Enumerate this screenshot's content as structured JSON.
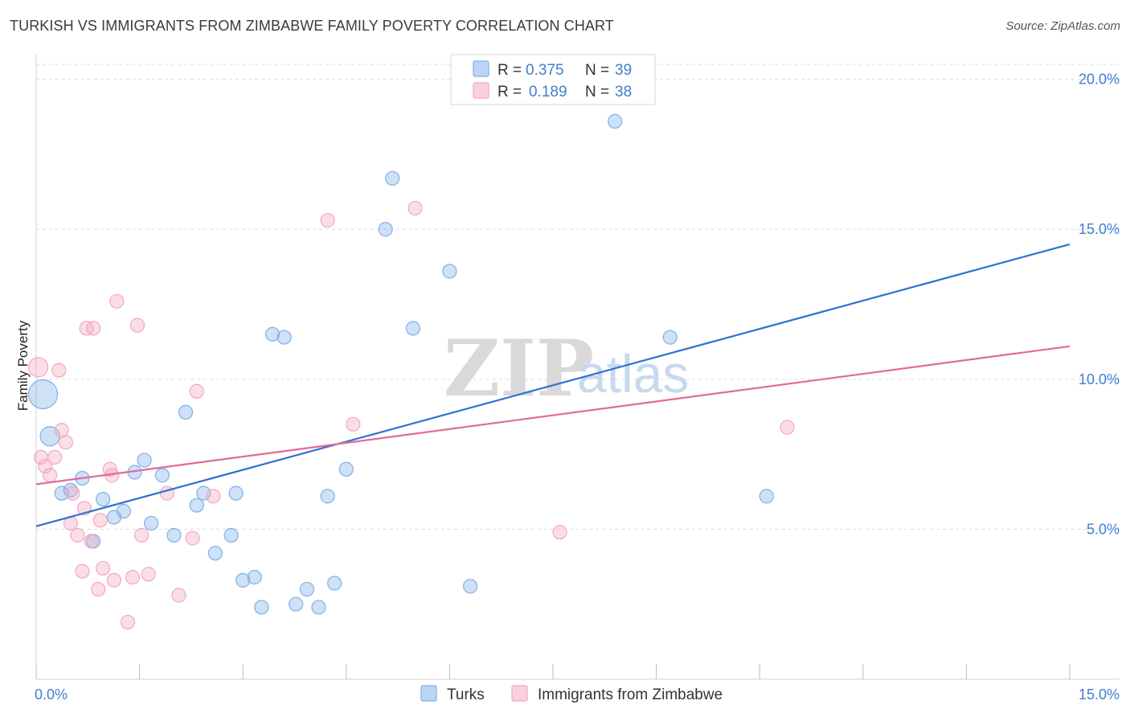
{
  "header": {
    "title": "TURKISH VS IMMIGRANTS FROM ZIMBABWE FAMILY POVERTY CORRELATION CHART",
    "source": "Source: ZipAtlas.com"
  },
  "watermark": {
    "zip": "ZIP",
    "atlas": "atlas"
  },
  "colors": {
    "turks": "#7fb0e8",
    "turks_line": "#2f72cf",
    "zimbabwe": "#f3a7c0",
    "zimbabwe_line": "#e06a97",
    "axis_label": "#3f7fd0"
  },
  "chart_data": {
    "type": "scatter",
    "title": "TURKISH VS IMMIGRANTS FROM ZIMBABWE FAMILY POVERTY CORRELATION CHART",
    "xlabel": "",
    "ylabel": "Family Poverty",
    "xlim": [
      0,
      15
    ],
    "ylim": [
      0,
      20.5
    ],
    "x_tick_labels": [
      "0.0%",
      "15.0%"
    ],
    "y_ticks": [
      5,
      10,
      15,
      20
    ],
    "y_tick_labels": [
      "5.0%",
      "10.0%",
      "15.0%",
      "20.0%"
    ],
    "grid": true,
    "legend": {
      "placement": "top-center",
      "entries": [
        {
          "r_label": "R =",
          "r_value": "0.375",
          "n_label": "N =",
          "n_value": "39"
        },
        {
          "r_label": "R =",
          "r_value": "0.189",
          "n_label": "N =",
          "n_value": "38"
        }
      ]
    },
    "series": [
      {
        "name": "Turks",
        "trend": {
          "x": [
            0,
            15
          ],
          "y": [
            5.1,
            14.5
          ]
        },
        "points": [
          {
            "x": 0.1,
            "y": 9.5,
            "size": "large"
          },
          {
            "x": 0.2,
            "y": 8.1,
            "size": "medium"
          },
          {
            "x": 0.37,
            "y": 6.2
          },
          {
            "x": 0.5,
            "y": 6.3
          },
          {
            "x": 0.67,
            "y": 6.7
          },
          {
            "x": 0.83,
            "y": 4.6
          },
          {
            "x": 0.97,
            "y": 6.0
          },
          {
            "x": 1.13,
            "y": 5.4
          },
          {
            "x": 1.27,
            "y": 5.6
          },
          {
            "x": 1.43,
            "y": 6.9
          },
          {
            "x": 1.57,
            "y": 7.3
          },
          {
            "x": 1.67,
            "y": 5.2
          },
          {
            "x": 1.83,
            "y": 6.8
          },
          {
            "x": 2.0,
            "y": 4.8
          },
          {
            "x": 2.17,
            "y": 8.9
          },
          {
            "x": 2.33,
            "y": 5.8
          },
          {
            "x": 2.43,
            "y": 6.2
          },
          {
            "x": 2.6,
            "y": 4.2
          },
          {
            "x": 2.83,
            "y": 4.8
          },
          {
            "x": 2.9,
            "y": 6.2
          },
          {
            "x": 3.0,
            "y": 3.3
          },
          {
            "x": 3.17,
            "y": 3.4
          },
          {
            "x": 3.27,
            "y": 2.4
          },
          {
            "x": 3.43,
            "y": 11.5
          },
          {
            "x": 3.6,
            "y": 11.4
          },
          {
            "x": 3.77,
            "y": 2.5
          },
          {
            "x": 3.93,
            "y": 3.0
          },
          {
            "x": 4.1,
            "y": 2.4
          },
          {
            "x": 4.23,
            "y": 6.1
          },
          {
            "x": 4.33,
            "y": 3.2
          },
          {
            "x": 4.5,
            "y": 7.0
          },
          {
            "x": 5.07,
            "y": 15.0
          },
          {
            "x": 5.17,
            "y": 16.7
          },
          {
            "x": 5.47,
            "y": 11.7
          },
          {
            "x": 6.0,
            "y": 13.6
          },
          {
            "x": 6.3,
            "y": 3.1
          },
          {
            "x": 8.4,
            "y": 18.6
          },
          {
            "x": 9.2,
            "y": 11.4
          },
          {
            "x": 10.6,
            "y": 6.1
          }
        ]
      },
      {
        "name": "Immigrants from Zimbabwe",
        "trend": {
          "x": [
            0,
            15
          ],
          "y": [
            6.5,
            11.1
          ]
        },
        "points": [
          {
            "x": 0.03,
            "y": 10.4,
            "size": "medium"
          },
          {
            "x": 0.07,
            "y": 7.4
          },
          {
            "x": 0.13,
            "y": 7.1
          },
          {
            "x": 0.2,
            "y": 6.8
          },
          {
            "x": 0.27,
            "y": 7.4
          },
          {
            "x": 0.33,
            "y": 10.3
          },
          {
            "x": 0.37,
            "y": 8.3
          },
          {
            "x": 0.43,
            "y": 7.9
          },
          {
            "x": 0.5,
            "y": 5.2
          },
          {
            "x": 0.53,
            "y": 6.2
          },
          {
            "x": 0.6,
            "y": 4.8
          },
          {
            "x": 0.67,
            "y": 3.6
          },
          {
            "x": 0.7,
            "y": 5.7
          },
          {
            "x": 0.73,
            "y": 11.7
          },
          {
            "x": 0.8,
            "y": 4.6
          },
          {
            "x": 0.83,
            "y": 11.7
          },
          {
            "x": 0.9,
            "y": 3.0
          },
          {
            "x": 0.93,
            "y": 5.3
          },
          {
            "x": 0.97,
            "y": 3.7
          },
          {
            "x": 1.07,
            "y": 7.0
          },
          {
            "x": 1.1,
            "y": 6.8
          },
          {
            "x": 1.13,
            "y": 3.3
          },
          {
            "x": 1.17,
            "y": 12.6
          },
          {
            "x": 1.33,
            "y": 1.9
          },
          {
            "x": 1.4,
            "y": 3.4
          },
          {
            "x": 1.47,
            "y": 11.8
          },
          {
            "x": 1.53,
            "y": 4.8
          },
          {
            "x": 1.63,
            "y": 3.5
          },
          {
            "x": 1.9,
            "y": 6.2
          },
          {
            "x": 2.07,
            "y": 2.8
          },
          {
            "x": 2.27,
            "y": 4.7
          },
          {
            "x": 2.33,
            "y": 9.6
          },
          {
            "x": 2.57,
            "y": 6.1
          },
          {
            "x": 4.23,
            "y": 15.3
          },
          {
            "x": 4.6,
            "y": 8.5
          },
          {
            "x": 5.5,
            "y": 15.7
          },
          {
            "x": 7.6,
            "y": 4.9
          },
          {
            "x": 10.9,
            "y": 8.4
          }
        ]
      }
    ]
  }
}
